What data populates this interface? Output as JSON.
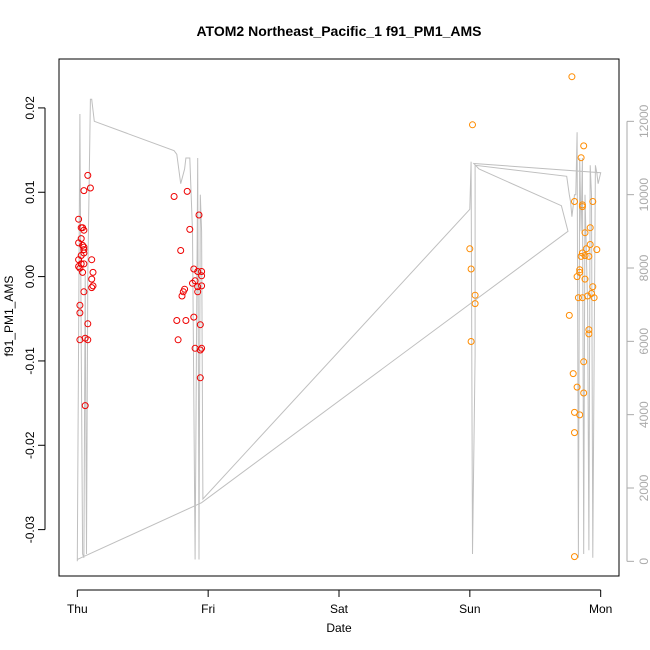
{
  "chart_data": {
    "type": "scatter",
    "title": "ATOM2 Northeast_Pacific_1 f91_PM1_AMS",
    "xlabel": "Date",
    "ylabel": "f91_PM1_AMS",
    "x_ticks": [
      "Thu",
      "Fri",
      "Sat",
      "Sun",
      "Mon"
    ],
    "y_ticks": [
      "-0.03",
      "-0.02",
      "-0.01",
      "0.00",
      "0.01",
      "0.02"
    ],
    "y_tick_values": [
      -0.03,
      -0.02,
      -0.01,
      0.0,
      0.01,
      0.02
    ],
    "ylim": [
      -0.0355,
      0.0258
    ],
    "y2_ticks": [
      "0",
      "2000",
      "4000",
      "6000",
      "8000",
      "10000",
      "12000"
    ],
    "y2_tick_values": [
      0,
      2000,
      4000,
      6000,
      8000,
      10000,
      12000
    ],
    "y2lim": [
      -400,
      13700
    ],
    "xlim": [
      -0.14,
      4.14
    ],
    "grid": false,
    "colors": {
      "early": "#ee0000",
      "late": "#ff8c00",
      "secondary_line": "#bfbfbf",
      "right_axis": "#aaaaaa"
    },
    "series": [
      {
        "color": "#ee0000",
        "points": [
          [
            0.01,
            0.0068
          ],
          [
            0.01,
            0.004
          ],
          [
            0.01,
            0.002
          ],
          [
            0.01,
            0.0012
          ],
          [
            0.02,
            0.001
          ],
          [
            0.02,
            -0.0034
          ],
          [
            0.02,
            -0.0043
          ],
          [
            0.03,
            0.0058
          ],
          [
            0.02,
            -0.0075
          ],
          [
            0.03,
            0.0045
          ],
          [
            0.03,
            0.0025
          ],
          [
            0.03,
            0.0015
          ],
          [
            0.04,
            0.0005
          ],
          [
            0.04,
            0.0058
          ],
          [
            0.04,
            0.0037
          ],
          [
            0.05,
            0.0035
          ],
          [
            0.05,
            0.0102
          ],
          [
            0.05,
            0.0055
          ],
          [
            0.05,
            0.0032
          ],
          [
            0.05,
            0.0028
          ],
          [
            0.05,
            0.0015
          ],
          [
            0.05,
            -0.0018
          ],
          [
            0.06,
            -0.0073
          ],
          [
            0.06,
            -0.0153
          ],
          [
            0.08,
            -0.0056
          ],
          [
            0.08,
            -0.0075
          ],
          [
            0.08,
            0.012
          ],
          [
            0.1,
            0.0105
          ],
          [
            0.11,
            0.002
          ],
          [
            0.11,
            -0.0003
          ],
          [
            0.11,
            -0.0013
          ],
          [
            0.12,
            0.0005
          ],
          [
            0.12,
            -0.0011
          ],
          [
            0.74,
            0.0095
          ],
          [
            0.76,
            -0.0052
          ],
          [
            0.77,
            -0.0075
          ],
          [
            0.79,
            0.0031
          ],
          [
            0.8,
            -0.0023
          ],
          [
            0.81,
            -0.0018
          ],
          [
            0.82,
            -0.0015
          ],
          [
            0.83,
            -0.0052
          ],
          [
            0.84,
            0.0101
          ],
          [
            0.86,
            0.0056
          ],
          [
            0.88,
            -0.0008
          ],
          [
            0.89,
            0.0009
          ],
          [
            0.9,
            -0.0005
          ],
          [
            0.89,
            -0.0048
          ],
          [
            0.9,
            -0.0085
          ],
          [
            0.92,
            -0.0018
          ],
          [
            0.92,
            -0.0012
          ],
          [
            0.92,
            0.0006
          ],
          [
            0.93,
            0.0073
          ],
          [
            0.94,
            -0.0057
          ],
          [
            0.94,
            -0.0087
          ],
          [
            0.95,
            -0.0085
          ],
          [
            0.94,
            -0.012
          ],
          [
            0.95,
            0.0001
          ],
          [
            0.95,
            0.0006
          ],
          [
            0.95,
            -0.0011
          ]
        ]
      },
      {
        "color": "#ff8c00",
        "points": [
          [
            3.0,
            0.0033
          ],
          [
            3.01,
            0.0009
          ],
          [
            3.01,
            -0.0077
          ],
          [
            3.02,
            0.018
          ],
          [
            3.04,
            -0.0022
          ],
          [
            3.04,
            -0.0032
          ],
          [
            3.76,
            -0.0046
          ],
          [
            3.78,
            0.0237
          ],
          [
            3.79,
            -0.0115
          ],
          [
            3.8,
            0.0089
          ],
          [
            3.8,
            -0.0161
          ],
          [
            3.8,
            -0.0185
          ],
          [
            3.8,
            -0.0332
          ],
          [
            3.82,
            0.0
          ],
          [
            3.82,
            -0.0131
          ],
          [
            3.83,
            -0.0025
          ],
          [
            3.84,
            -0.0164
          ],
          [
            3.84,
            0.0008
          ],
          [
            3.84,
            0.0005
          ],
          [
            3.85,
            0.0141
          ],
          [
            3.85,
            0.0024
          ],
          [
            3.86,
            0.0085
          ],
          [
            3.86,
            0.0083
          ],
          [
            3.86,
            0.0028
          ],
          [
            3.86,
            -0.0025
          ],
          [
            3.87,
            0.0155
          ],
          [
            3.87,
            -0.0138
          ],
          [
            3.87,
            -0.0101
          ],
          [
            3.88,
            0.0052
          ],
          [
            3.88,
            0.0025
          ],
          [
            3.88,
            -0.0003
          ],
          [
            3.89,
            0.0033
          ],
          [
            3.9,
            -0.0023
          ],
          [
            3.91,
            -0.0063
          ],
          [
            3.91,
            -0.0068
          ],
          [
            3.91,
            0.0024
          ],
          [
            3.92,
            0.0038
          ],
          [
            3.92,
            0.0058
          ],
          [
            3.93,
            -0.002
          ],
          [
            3.94,
            0.0089
          ],
          [
            3.94,
            -0.0012
          ],
          [
            3.95,
            -0.0025
          ],
          [
            3.97,
            0.0032
          ]
        ]
      }
    ],
    "secondary_series": {
      "color": "#bfbfbf",
      "points": [
        [
          0.0,
          0.0
        ],
        [
          0.02,
          12200
        ],
        [
          0.03,
          6000
        ],
        [
          0.04,
          200
        ],
        [
          0.05,
          100
        ],
        [
          0.06,
          7800
        ],
        [
          0.07,
          200
        ],
        [
          0.08,
          7800
        ],
        [
          0.09,
          10200
        ],
        [
          0.1,
          12600
        ],
        [
          0.11,
          12600
        ],
        [
          0.13,
          12000
        ],
        [
          0.74,
          11200
        ],
        [
          0.76,
          11100
        ],
        [
          0.79,
          10300
        ],
        [
          0.82,
          10700
        ],
        [
          0.83,
          11000
        ],
        [
          0.85,
          11000
        ],
        [
          0.86,
          11000
        ],
        [
          0.88,
          9000
        ],
        [
          0.9,
          50
        ],
        [
          0.92,
          11000
        ],
        [
          0.93,
          50
        ],
        [
          0.94,
          10000
        ],
        [
          0.95,
          9000
        ],
        [
          0.96,
          1700
        ],
        [
          3.0,
          9600
        ],
        [
          3.01,
          10900
        ],
        [
          3.02,
          200
        ],
        [
          3.04,
          5600
        ],
        [
          3.04,
          10800
        ],
        [
          3.74,
          10500
        ],
        [
          3.76,
          10000
        ],
        [
          3.77,
          9800
        ],
        [
          3.78,
          9400
        ],
        [
          3.8,
          10000
        ],
        [
          3.81,
          10000
        ],
        [
          3.82,
          11700
        ],
        [
          3.83,
          100
        ],
        [
          3.84,
          11000
        ],
        [
          3.85,
          9000
        ],
        [
          3.86,
          11000
        ],
        [
          3.87,
          200
        ],
        [
          3.88,
          10000
        ],
        [
          3.9,
          7000
        ],
        [
          3.91,
          300
        ],
        [
          3.92,
          10800
        ],
        [
          3.93,
          10000
        ],
        [
          3.94,
          100
        ],
        [
          3.96,
          10800
        ],
        [
          3.97,
          10600
        ],
        [
          3.98,
          10300
        ],
        [
          4.0,
          10600
        ],
        [
          3.03,
          10850
        ],
        [
          3.07,
          10700
        ],
        [
          3.7,
          9700
        ],
        [
          3.75,
          9000
        ],
        [
          0.95,
          1600
        ],
        [
          0.03,
          100
        ],
        [
          0.0,
          50
        ]
      ]
    }
  }
}
